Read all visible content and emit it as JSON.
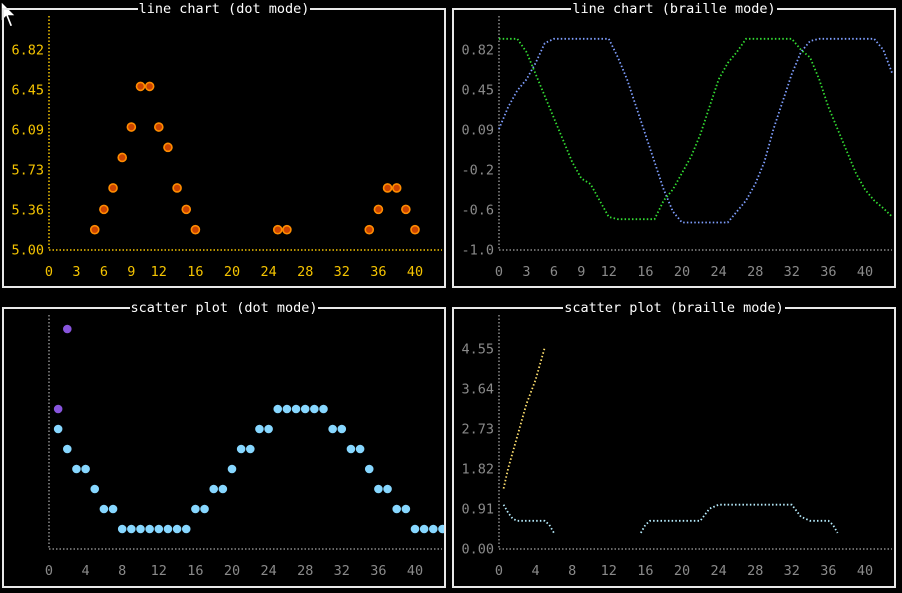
{
  "colors": {
    "orange": "#ff8c00",
    "orange_fill": "#cc4400",
    "yellow": "#f5c400",
    "gray": "#8a8a8a",
    "blue": "#7f9fff",
    "green": "#33dd33",
    "cyan": "#87d7ff",
    "purple": "#8855dd",
    "light_cyan": "#b8eeff",
    "light_yellow": "#ffe06e"
  },
  "panels": [
    {
      "id": "p1",
      "title": "line chart (dot mode)"
    },
    {
      "id": "p2",
      "title": "line chart (braille mode)"
    },
    {
      "id": "p3",
      "title": "scatter plot (dot mode)"
    },
    {
      "id": "p4",
      "title": "scatter plot (braille mode)"
    }
  ],
  "chart_data": [
    {
      "type": "scatter",
      "title": "line chart (dot mode)",
      "ylim": [
        5.0,
        6.95
      ],
      "xlim": [
        0,
        43
      ],
      "y_ticks": [
        "6.82",
        "6.45",
        "6.09",
        "5.73",
        "5.36",
        "5.00"
      ],
      "x_ticks": [
        "0",
        "3",
        "6",
        "9",
        "12",
        "16",
        "20",
        "24",
        "28",
        "32",
        "36",
        "40"
      ],
      "series": [
        {
          "x": [
            5,
            6,
            7,
            8,
            9,
            10,
            11,
            12,
            13,
            14,
            15,
            16,
            25,
            26,
            35,
            36,
            37,
            38,
            39,
            40
          ],
          "values": [
            5.18,
            5.36,
            5.55,
            5.82,
            6.09,
            6.45,
            6.45,
            6.09,
            5.91,
            5.55,
            5.36,
            5.18,
            5.18,
            5.18,
            5.18,
            5.36,
            5.55,
            5.55,
            5.36,
            5.18
          ]
        }
      ]
    },
    {
      "type": "line",
      "title": "line chart (braille mode)",
      "ylim": [
        -1.0,
        1.0
      ],
      "xlim": [
        0,
        43
      ],
      "y_ticks": [
        "0.82",
        "0.45",
        "0.09",
        "-0.2",
        "-0.6",
        "-1.0"
      ],
      "x_ticks": [
        "0",
        "3",
        "6",
        "9",
        "12",
        "16",
        "20",
        "24",
        "28",
        "32",
        "36",
        "40"
      ],
      "series": [
        {
          "x": [
            0,
            1,
            2,
            3,
            4,
            5,
            6,
            7,
            8,
            9,
            10,
            11,
            12,
            13,
            14,
            15,
            16,
            17,
            18,
            19,
            20,
            21,
            22,
            23,
            24,
            25,
            26,
            27,
            28,
            29,
            30,
            31,
            32,
            33,
            34,
            35,
            36,
            37,
            38,
            39,
            40,
            41,
            42,
            43
          ],
          "values": [
            0.1,
            0.3,
            0.45,
            0.55,
            0.7,
            0.88,
            0.92,
            0.92,
            0.92,
            0.92,
            0.92,
            0.92,
            0.92,
            0.75,
            0.55,
            0.3,
            0.05,
            -0.2,
            -0.45,
            -0.65,
            -0.75,
            -0.75,
            -0.75,
            -0.75,
            -0.75,
            -0.75,
            -0.65,
            -0.55,
            -0.4,
            -0.2,
            0.1,
            0.35,
            0.6,
            0.8,
            0.9,
            0.92,
            0.92,
            0.92,
            0.92,
            0.92,
            0.92,
            0.92,
            0.82,
            0.6
          ]
        },
        {
          "x": [
            0,
            1,
            2,
            3,
            4,
            5,
            6,
            7,
            8,
            9,
            10,
            11,
            12,
            13,
            14,
            15,
            16,
            17,
            18,
            19,
            20,
            21,
            22,
            23,
            24,
            25,
            26,
            27,
            28,
            29,
            30,
            31,
            32,
            33,
            34,
            35,
            36,
            37,
            38,
            39,
            40,
            41,
            42,
            43
          ],
          "values": [
            0.92,
            0.92,
            0.92,
            0.8,
            0.6,
            0.4,
            0.2,
            0.0,
            -0.2,
            -0.35,
            -0.4,
            -0.55,
            -0.7,
            -0.72,
            -0.72,
            -0.72,
            -0.72,
            -0.72,
            -0.55,
            -0.45,
            -0.3,
            -0.15,
            0.05,
            0.3,
            0.55,
            0.7,
            0.8,
            0.92,
            0.92,
            0.92,
            0.92,
            0.92,
            0.92,
            0.82,
            0.75,
            0.55,
            0.3,
            0.1,
            -0.1,
            -0.3,
            -0.45,
            -0.55,
            -0.62,
            -0.7
          ]
        }
      ]
    },
    {
      "type": "scatter",
      "title": "scatter plot (dot mode)",
      "ylim": [
        0,
        2.2
      ],
      "xlim": [
        0,
        43
      ],
      "x_ticks": [
        "0",
        "4",
        "8",
        "12",
        "16",
        "20",
        "24",
        "28",
        "32",
        "36",
        "40"
      ],
      "series": [
        {
          "x": [
            1,
            2,
            3,
            4,
            5,
            6,
            7,
            8,
            9,
            10,
            11,
            12,
            13,
            14,
            15,
            16,
            17,
            18,
            19,
            20,
            21,
            22,
            23,
            24,
            25,
            26,
            27,
            28,
            29,
            30,
            31,
            32,
            33,
            34,
            35,
            36,
            37,
            38,
            39,
            40,
            41,
            42,
            43
          ],
          "values": [
            1.2,
            1.0,
            0.8,
            0.8,
            0.6,
            0.4,
            0.4,
            0.2,
            0.2,
            0.2,
            0.2,
            0.2,
            0.2,
            0.2,
            0.2,
            0.4,
            0.4,
            0.6,
            0.6,
            0.8,
            1.0,
            1.0,
            1.2,
            1.2,
            1.4,
            1.4,
            1.4,
            1.4,
            1.4,
            1.4,
            1.2,
            1.2,
            1.0,
            1.0,
            0.8,
            0.6,
            0.6,
            0.4,
            0.4,
            0.2,
            0.2,
            0.2,
            0.2
          ]
        },
        {
          "x": [
            1,
            2
          ],
          "values": [
            1.4,
            2.2
          ]
        }
      ]
    },
    {
      "type": "line",
      "title": "scatter plot (braille mode)",
      "ylim": [
        0,
        5.46
      ],
      "xlim": [
        0,
        43
      ],
      "y_ticks": [
        "4.55",
        "3.64",
        "2.73",
        "1.82",
        "0.91",
        "0.00"
      ],
      "x_ticks": [
        "0",
        "4",
        "8",
        "12",
        "16",
        "20",
        "24",
        "28",
        "32",
        "36",
        "40"
      ],
      "series": [
        {
          "x": [
            0.5,
            1,
            1.5,
            2,
            3,
            4,
            5,
            5.5,
            6
          ],
          "values": [
            1.1,
            0.9,
            0.75,
            0.7,
            0.7,
            0.7,
            0.7,
            0.6,
            0.4
          ]
        },
        {
          "x": [
            15.5,
            16,
            16.5,
            17,
            18,
            19,
            20,
            21,
            22,
            22.5,
            23,
            24,
            25,
            26,
            27,
            28,
            29,
            30,
            31,
            32,
            32.5,
            33,
            34,
            35,
            36,
            36.5,
            37
          ],
          "values": [
            0.4,
            0.6,
            0.7,
            0.7,
            0.7,
            0.7,
            0.7,
            0.7,
            0.7,
            0.85,
            1.0,
            1.1,
            1.1,
            1.1,
            1.1,
            1.1,
            1.1,
            1.1,
            1.1,
            1.1,
            0.95,
            0.8,
            0.7,
            0.7,
            0.7,
            0.6,
            0.4
          ]
        },
        {
          "x": [
            0.5,
            1,
            1.5,
            2,
            2.5,
            3,
            3.5,
            4,
            4.5,
            5
          ],
          "values": [
            1.5,
            2.0,
            2.4,
            2.8,
            3.2,
            3.6,
            3.9,
            4.2,
            4.6,
            5.0
          ]
        }
      ]
    }
  ]
}
